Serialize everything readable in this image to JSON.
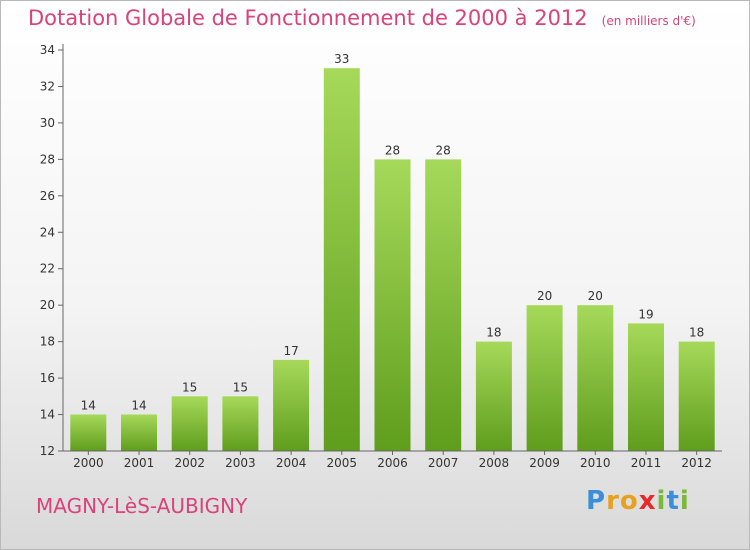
{
  "header": {
    "title": "Dotation Globale de Fonctionnement de 2000 à 2012",
    "subtitle": "(en milliers d'€)"
  },
  "footer": {
    "commune": "MAGNY-LèS-AUBIGNY",
    "logo_letters": [
      "P",
      "r",
      "o",
      "x",
      "i",
      "t",
      "i"
    ],
    "logo_colors": [
      "#3b8fd9",
      "#e8a11c",
      "#e8a11c",
      "#e8282a",
      "#7ab83a",
      "#3b8fd9",
      "#7ab83a"
    ]
  },
  "colors": {
    "bar_top": "#a6d95a",
    "bar_bottom": "#5f9d1c",
    "title": "#d9427a"
  },
  "chart_data": {
    "type": "bar",
    "title": "Dotation Globale de Fonctionnement de 2000 à 2012",
    "subtitle": "(en milliers d'€)",
    "xlabel": "",
    "ylabel": "",
    "categories": [
      "2000",
      "2001",
      "2002",
      "2003",
      "2004",
      "2005",
      "2006",
      "2007",
      "2008",
      "2009",
      "2010",
      "2011",
      "2012"
    ],
    "values": [
      14,
      14,
      15,
      15,
      17,
      33,
      28,
      28,
      18,
      20,
      20,
      19,
      18
    ],
    "value_labels": [
      "14",
      "14",
      "15",
      "15",
      "17",
      "33",
      "28",
      "28",
      "18",
      "20",
      "20",
      "19",
      "18"
    ],
    "ylim": [
      12,
      34
    ],
    "yticks": [
      "12",
      "14",
      "16",
      "18",
      "20",
      "22",
      "24",
      "26",
      "28",
      "30",
      "32",
      "34"
    ],
    "grid": false,
    "legend": "none"
  }
}
